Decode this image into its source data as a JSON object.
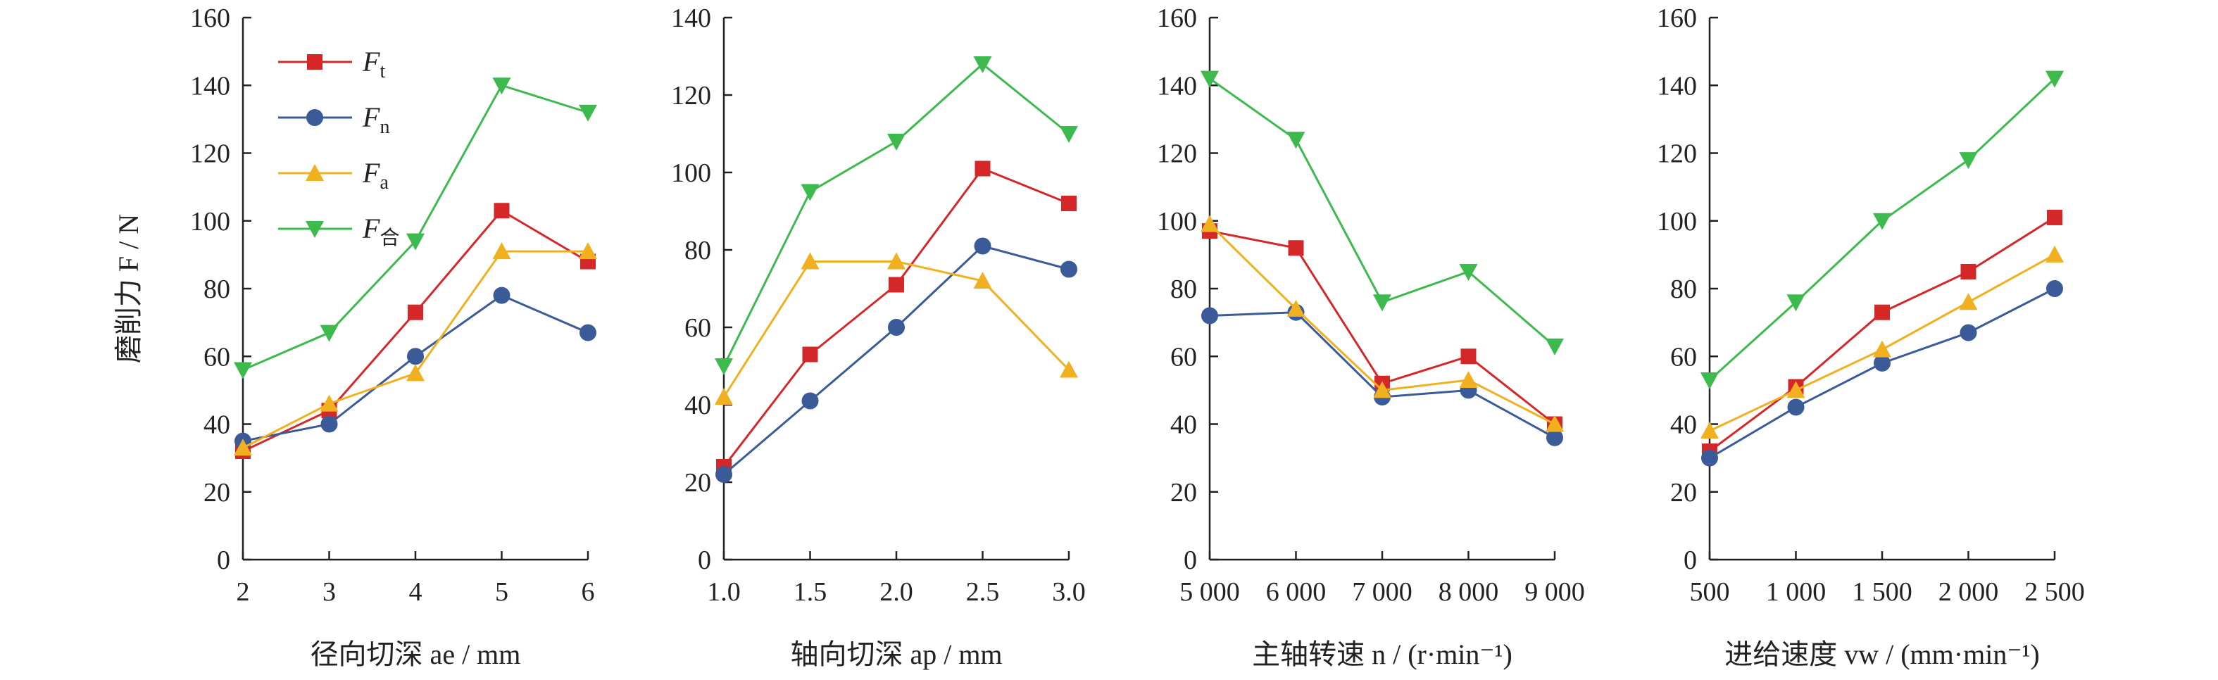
{
  "figure": {
    "ylabel": "磨削力 F / N",
    "legend": [
      {
        "name": "F",
        "sub": "t",
        "color": "#d62728",
        "marker": "square"
      },
      {
        "name": "F",
        "sub": "n",
        "color": "#3a5a98",
        "marker": "circle"
      },
      {
        "name": "F",
        "sub": "a",
        "color": "#f0b020",
        "marker": "triangle-up"
      },
      {
        "name": "F",
        "sub": "合",
        "color": "#3dba4e",
        "marker": "triangle-down"
      }
    ]
  },
  "chart_data": [
    {
      "type": "line",
      "x": [
        2,
        3,
        4,
        5,
        6
      ],
      "x_ticks": [
        "2",
        "3",
        "4",
        "5",
        "6"
      ],
      "xlabel": "径向切深 ae / mm",
      "ylim": [
        0,
        160
      ],
      "y_ticks": [
        0,
        20,
        40,
        60,
        80,
        100,
        120,
        140,
        160
      ],
      "series": [
        {
          "name": "Ft",
          "values": [
            32,
            44,
            73,
            103,
            88
          ]
        },
        {
          "name": "Fn",
          "values": [
            35,
            40,
            60,
            78,
            67
          ]
        },
        {
          "name": "Fa",
          "values": [
            33,
            46,
            55,
            91,
            91
          ]
        },
        {
          "name": "F合",
          "values": [
            56,
            67,
            94,
            140,
            132
          ]
        }
      ]
    },
    {
      "type": "line",
      "x": [
        1.0,
        1.5,
        2.0,
        2.5,
        3.0
      ],
      "x_ticks": [
        "1.0",
        "1.5",
        "2.0",
        "2.5",
        "3.0"
      ],
      "xlabel": "轴向切深 ap / mm",
      "ylim": [
        0,
        140
      ],
      "y_ticks": [
        0,
        20,
        40,
        60,
        80,
        100,
        120,
        140
      ],
      "series": [
        {
          "name": "Ft",
          "values": [
            24,
            53,
            71,
            101,
            92
          ]
        },
        {
          "name": "Fn",
          "values": [
            22,
            41,
            60,
            81,
            75
          ]
        },
        {
          "name": "Fa",
          "values": [
            42,
            77,
            77,
            72,
            49
          ]
        },
        {
          "name": "F合",
          "values": [
            50,
            95,
            108,
            128,
            110
          ]
        }
      ]
    },
    {
      "type": "line",
      "x": [
        5000,
        6000,
        7000,
        8000,
        9000
      ],
      "x_ticks": [
        "5 000",
        "6 000",
        "7 000",
        "8 000",
        "9 000"
      ],
      "xlabel": "主轴转速 n / (r·min⁻¹)",
      "ylim": [
        0,
        160
      ],
      "y_ticks": [
        0,
        20,
        40,
        60,
        80,
        100,
        120,
        140,
        160
      ],
      "series": [
        {
          "name": "Ft",
          "values": [
            97,
            92,
            52,
            60,
            40
          ]
        },
        {
          "name": "Fn",
          "values": [
            72,
            73,
            48,
            50,
            36
          ]
        },
        {
          "name": "Fa",
          "values": [
            99,
            74,
            50,
            53,
            40
          ]
        },
        {
          "name": "F合",
          "values": [
            142,
            124,
            76,
            85,
            63
          ]
        }
      ]
    },
    {
      "type": "line",
      "x": [
        500,
        1000,
        1500,
        2000,
        2500
      ],
      "x_ticks": [
        "500",
        "1 000",
        "1 500",
        "2 000",
        "2 500"
      ],
      "xlabel": "进给速度 vw / (mm·min⁻¹)",
      "ylim": [
        0,
        160
      ],
      "y_ticks": [
        0,
        20,
        40,
        60,
        80,
        100,
        120,
        140,
        160
      ],
      "series": [
        {
          "name": "Ft",
          "values": [
            32,
            51,
            73,
            85,
            101
          ]
        },
        {
          "name": "Fn",
          "values": [
            30,
            45,
            58,
            67,
            80
          ]
        },
        {
          "name": "Fa",
          "values": [
            38,
            50,
            62,
            76,
            90
          ]
        },
        {
          "name": "F合",
          "values": [
            53,
            76,
            100,
            118,
            142
          ]
        }
      ]
    }
  ]
}
